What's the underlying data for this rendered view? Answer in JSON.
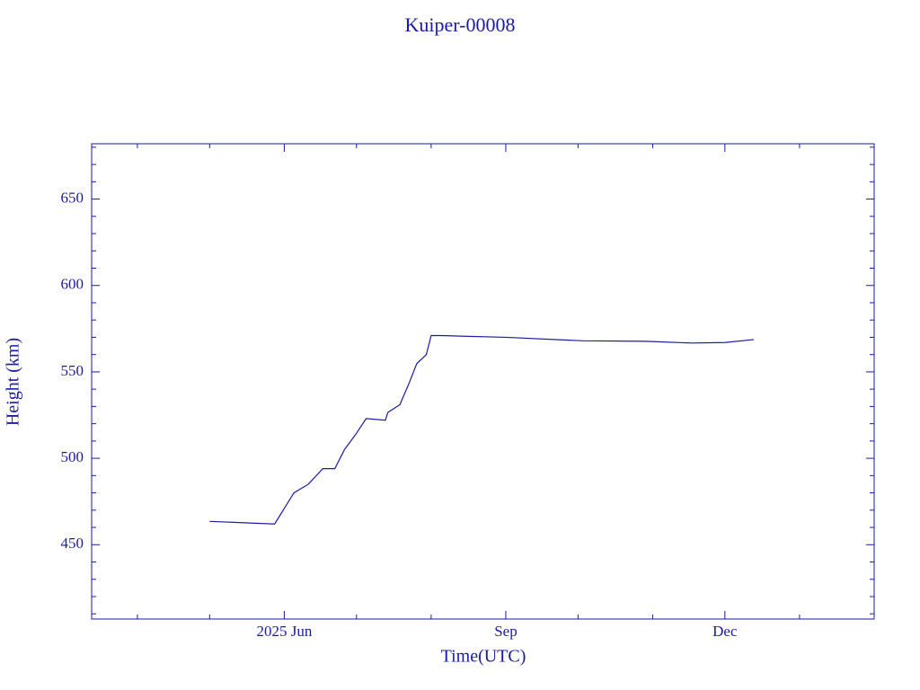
{
  "chart_data": {
    "type": "line",
    "title": "Kuiper-00008",
    "xlabel": "Time(UTC)",
    "ylabel": "Height (km)",
    "color": "#1a1aa6",
    "xlim": [
      "2025-03-13",
      "2026-02-01"
    ],
    "xticks": [
      {
        "value": "2025-06-01",
        "label": "2025 Jun"
      },
      {
        "value": "2025-09-01",
        "label": "Sep"
      },
      {
        "value": "2025-12-01",
        "label": "Dec"
      }
    ],
    "xminor_ticks": [
      "2025-04-01",
      "2025-05-01",
      "2025-07-01",
      "2025-08-01",
      "2025-10-01",
      "2025-11-01",
      "2026-01-01"
    ],
    "ylim": [
      407,
      682
    ],
    "yticks": [
      450,
      500,
      550,
      600,
      650
    ],
    "yminor_ticks": [
      410,
      420,
      430,
      440,
      460,
      470,
      480,
      490,
      510,
      520,
      530,
      540,
      560,
      570,
      580,
      590,
      610,
      620,
      630,
      640,
      660,
      670,
      680
    ],
    "x": [
      "2025-05-01",
      "2025-05-28",
      "2025-06-01",
      "2025-06-05",
      "2025-06-11",
      "2025-06-17",
      "2025-06-22",
      "2025-06-26",
      "2025-07-01",
      "2025-07-05",
      "2025-07-13",
      "2025-07-14",
      "2025-07-19",
      "2025-07-23",
      "2025-07-26",
      "2025-07-30",
      "2025-08-01",
      "2025-08-05",
      "2025-09-01",
      "2025-10-03",
      "2025-10-29",
      "2025-11-17",
      "2025-12-01",
      "2025-12-13"
    ],
    "values": [
      463.5,
      462,
      471,
      480,
      485,
      494,
      494,
      505,
      514.5,
      523,
      522,
      526.5,
      531,
      544,
      554.7,
      560,
      571,
      571,
      570,
      568,
      567.7,
      566.7,
      567,
      568.7
    ]
  }
}
